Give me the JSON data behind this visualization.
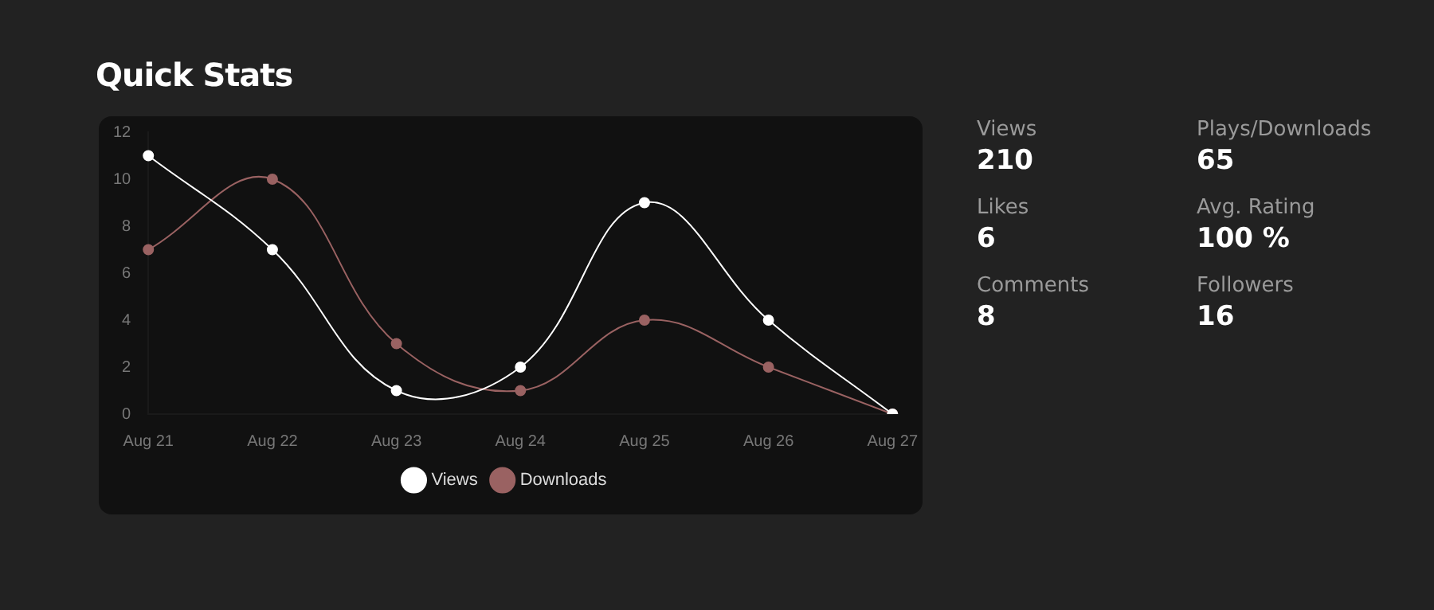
{
  "chart_data": [
    {
      "type": "line",
      "title": "Quick Stats",
      "categories": [
        "Aug 21",
        "Aug 22",
        "Aug 23",
        "Aug 24",
        "Aug 25",
        "Aug 26",
        "Aug 27"
      ],
      "series": [
        {
          "name": "Views",
          "color": "#ffffff",
          "values": [
            11,
            7,
            1,
            2,
            9,
            4,
            0
          ]
        },
        {
          "name": "Downloads",
          "color": "#9a6262",
          "values": [
            7,
            10,
            3,
            1,
            4,
            2,
            0
          ]
        }
      ],
      "ylim": [
        0,
        12
      ],
      "yticks": [
        0,
        2,
        4,
        6,
        8,
        10,
        12
      ],
      "grid": false,
      "legend": "bottom",
      "marker": "circle",
      "line_style": "solid"
    },
    {
      "type": "other",
      "annotations": [
        "Views",
        "210",
        "Plays/Downloads",
        "65",
        "Likes",
        "6",
        "Avg. Rating",
        "100 %",
        "Comments",
        "8",
        "Followers",
        "16"
      ]
    }
  ]
}
